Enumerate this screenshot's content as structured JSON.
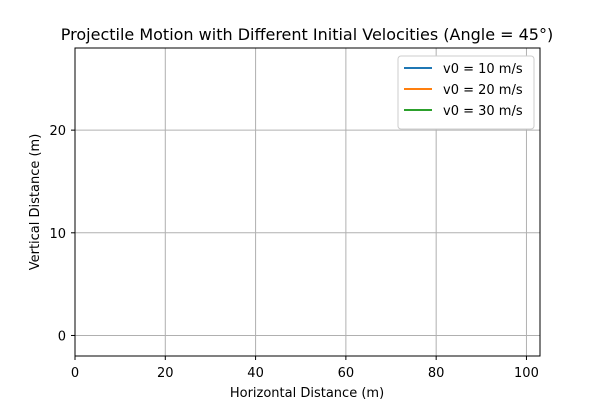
{
  "chart_data": {
    "type": "line",
    "title": "Projectile Motion with Different Initial Velocities (Angle = 45°)",
    "xlabel": "Horizontal Distance (m)",
    "ylabel": "Vertical Distance (m)",
    "xlim": [
      0,
      103
    ],
    "ylim": [
      -2,
      28
    ],
    "xticks": [
      0,
      20,
      40,
      60,
      80,
      100
    ],
    "yticks": [
      0,
      10,
      20
    ],
    "grid": true,
    "legend_position": "top-right",
    "series": [
      {
        "name": "v0 = 10 m/s",
        "color": "#1f77b4",
        "x": [],
        "y": []
      },
      {
        "name": "v0 = 20 m/s",
        "color": "#ff7f0e",
        "x": [],
        "y": []
      },
      {
        "name": "v0 = 30 m/s",
        "color": "#2ca02c",
        "x": [],
        "y": []
      }
    ]
  }
}
